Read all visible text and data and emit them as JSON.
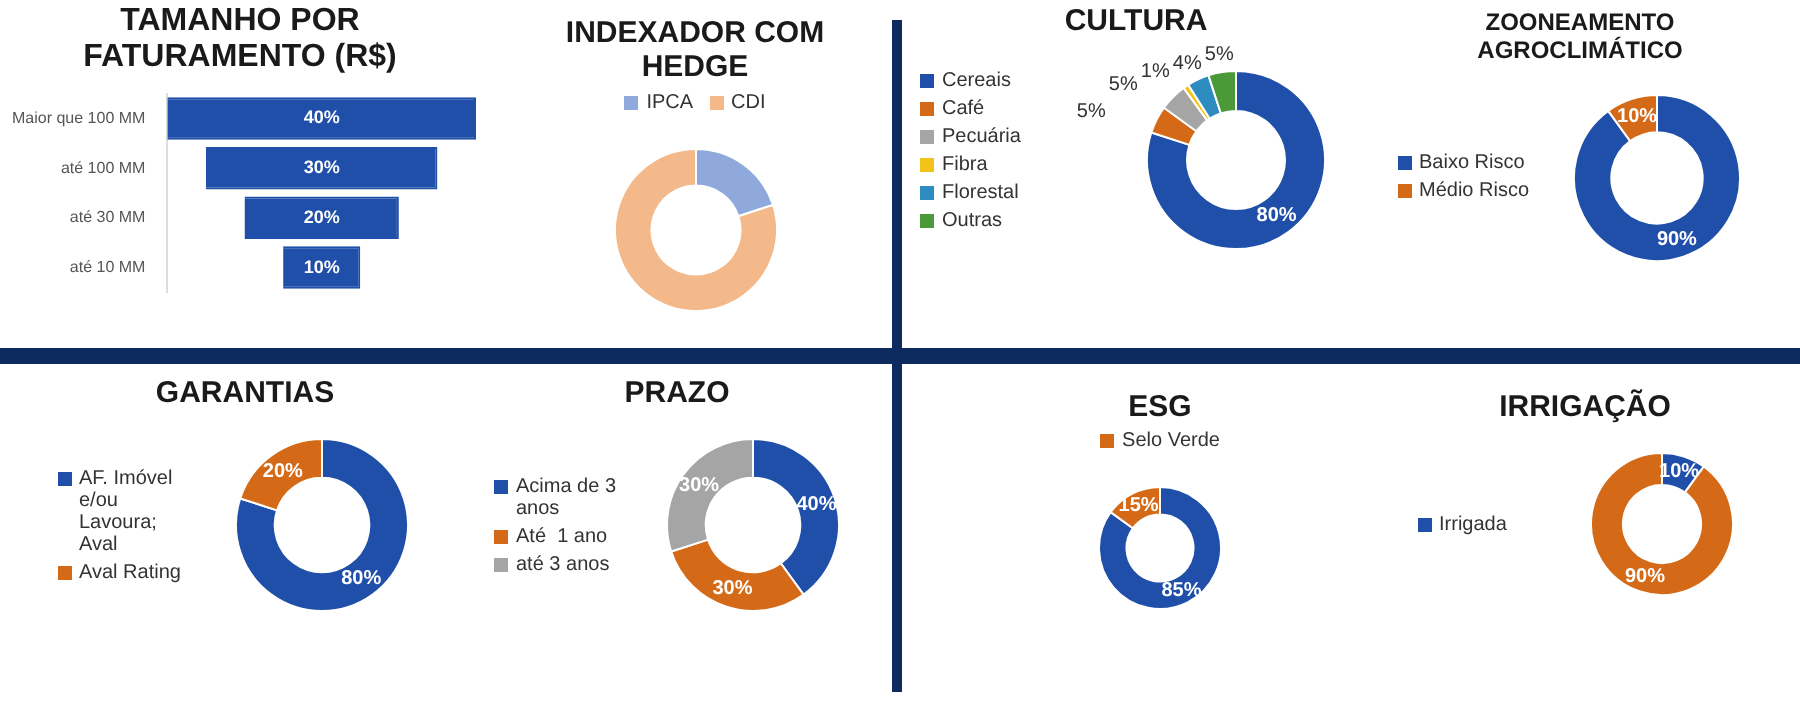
{
  "chart_data": [
    {
      "type": "other",
      "title": "TAMANHO POR FATURAMENTO (R$)",
      "categories": [
        "Maior que 100 MM",
        "até 100 MM",
        "até 30 MM",
        "até 10 MM"
      ],
      "values": [
        40,
        30,
        20,
        10
      ],
      "color": "#1f4fa8",
      "value_labels": [
        "40%",
        "30%",
        "20%",
        "10%"
      ]
    },
    {
      "type": "donut",
      "title": "INDEXADOR COM HEDGE",
      "categories": [
        "IPCA",
        "CDI"
      ],
      "values": [
        20,
        80
      ],
      "colors": [
        "#8fa9dc",
        "#f4b98a"
      ],
      "legend": "top"
    },
    {
      "type": "donut",
      "title": "CULTURA",
      "categories": [
        "Cereais",
        "Café",
        "Pecuária",
        "Fibra",
        "Florestal",
        "Outras"
      ],
      "values": [
        80,
        5,
        5,
        1,
        4,
        5
      ],
      "colors": [
        "#1f4fa8",
        "#d46a17",
        "#a5a5a5",
        "#f2c318",
        "#2e8bc0",
        "#4a9a3a"
      ],
      "value_labels": [
        "80%",
        "5%",
        "5%",
        "1%",
        "4%",
        "5%"
      ],
      "legend": "left"
    },
    {
      "type": "donut",
      "title": "ZOONEAMENTO AGROCLIMÁTICO",
      "categories": [
        "Baixo Risco",
        "Médio Risco"
      ],
      "values": [
        90,
        10
      ],
      "colors": [
        "#1f4fa8",
        "#d46a17"
      ],
      "value_labels": [
        "90%",
        "10%"
      ],
      "legend": "left"
    },
    {
      "type": "donut",
      "title": "GARANTIAS",
      "categories": [
        "AF. Imóvel e/ou Lavoura; Aval",
        "Aval Rating"
      ],
      "values": [
        80,
        20
      ],
      "colors": [
        "#1f4fa8",
        "#d46a17"
      ],
      "value_labels": [
        "80%",
        "20%"
      ],
      "legend": "left"
    },
    {
      "type": "donut",
      "title": "PRAZO",
      "categories": [
        "Acima de 3 anos",
        "Até  1 ano",
        "até 3 anos"
      ],
      "values": [
        40,
        30,
        30
      ],
      "colors": [
        "#1f4fa8",
        "#d46a17",
        "#a5a5a5"
      ],
      "value_labels": [
        "40%",
        "30%",
        "30%"
      ],
      "legend": "left"
    },
    {
      "type": "donut",
      "title": "ESG",
      "categories": [
        null,
        "Selo Verde"
      ],
      "values": [
        85,
        15
      ],
      "colors": [
        "#1f4fa8",
        "#d46a17"
      ],
      "value_labels": [
        "85%",
        "15%"
      ],
      "legend": "top"
    },
    {
      "type": "donut",
      "title": "IRRIGAÇÃO",
      "categories": [
        "Irrigada",
        null
      ],
      "values": [
        10,
        90
      ],
      "colors": [
        "#1f4fa8",
        "#d46a17"
      ],
      "value_labels": [
        "10%",
        "90%"
      ],
      "legend": "left"
    }
  ]
}
